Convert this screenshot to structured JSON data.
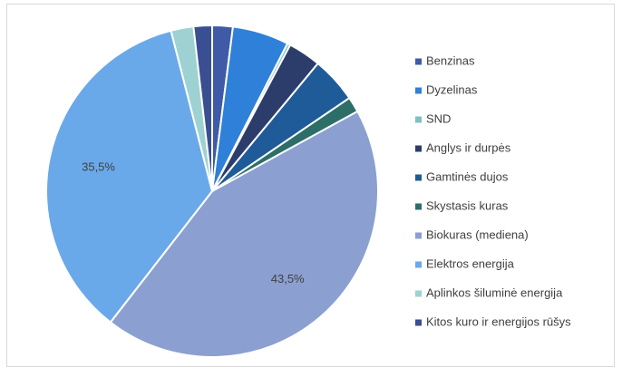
{
  "chart_data": {
    "type": "pie",
    "categories": [
      "Benzinas",
      "Dyzelinas",
      "SND",
      "Anglys ir durpės",
      "Gamtinės dujos",
      "Skystasis kuras",
      "Biokuras (mediena)",
      "Elektros energija",
      "Aplinkos šiluminė energija",
      "Kitos kuro ir energijos rūšys"
    ],
    "values": [
      2,
      5.5,
      0.3,
      3.2,
      4.5,
      1.5,
      43.5,
      35.5,
      2.2,
      1.8
    ],
    "value_labels": [
      null,
      null,
      null,
      null,
      null,
      null,
      "43,5%",
      "35,5%",
      null,
      null
    ],
    "colors": [
      "#3f5aa6",
      "#2f80d8",
      "#7cc3c3",
      "#2c3d6c",
      "#1f5b98",
      "#2d6e69",
      "#8b9fd1",
      "#6aa9e9",
      "#9ed2d2",
      "#3a4e92"
    ],
    "legend": "right"
  }
}
